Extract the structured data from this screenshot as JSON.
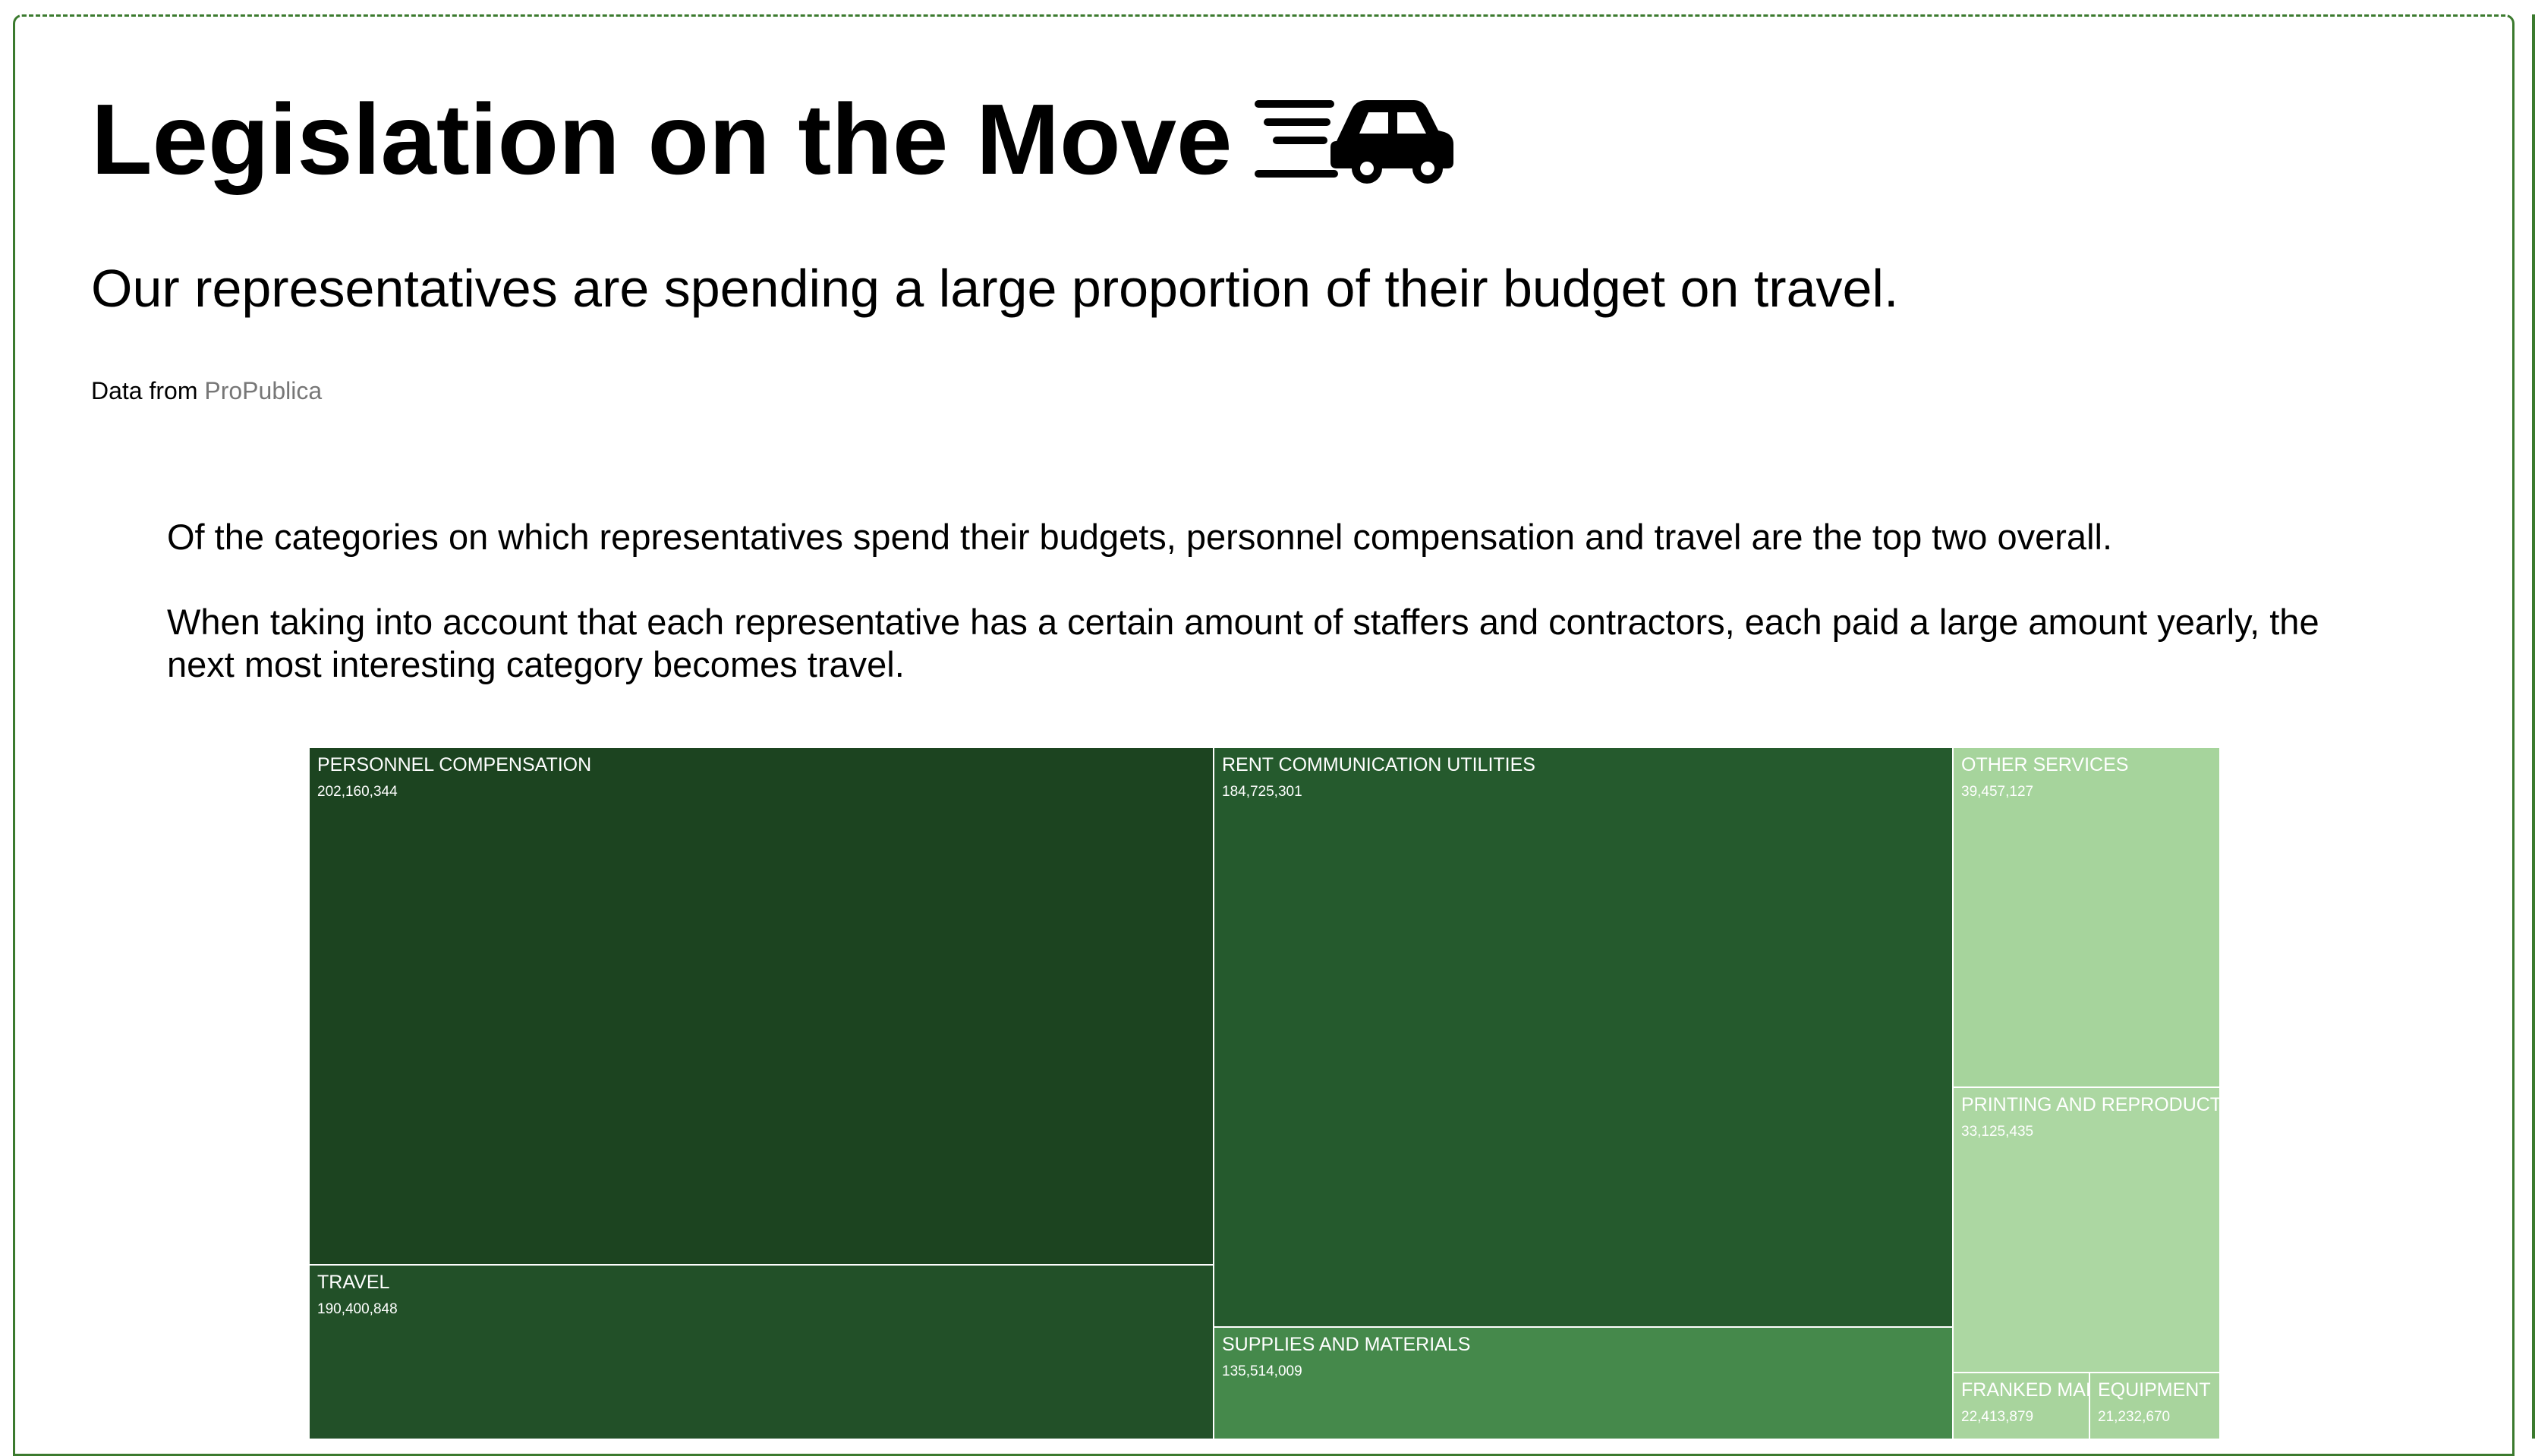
{
  "header": {
    "title": "Legislation on the Move",
    "title_icon": "speeding-car-icon",
    "subtitle": "Our representatives are spending a large proportion of their budget on travel.",
    "source_prefix": "Data from",
    "source_link": "ProPublica"
  },
  "body": {
    "paragraph_1": "Of the categories on which representatives spend their budgets, personnel compensation and travel are the top two overall.",
    "paragraph_2": "When taking into account that each representative has a certain amount of staffers and contractors, each paid a large amount yearly, the next most interesting category becomes travel."
  },
  "colors": {
    "frame": "#3b7a2e",
    "link": "#777777",
    "personnel": "#1c4420",
    "travel": "#225028",
    "rent": "#255a2d",
    "supplies": "#45894b",
    "other_services": "#a6d49c",
    "printing": "#acd7a2",
    "franked": "#a8d49d",
    "equipment": "#a8d49d"
  },
  "chart_data": {
    "type": "treemap",
    "items": [
      {
        "key": "personnel",
        "label": "PERSONNEL COMPENSATION",
        "value": 202160344,
        "value_text": "202,160,344"
      },
      {
        "key": "travel",
        "label": "TRAVEL",
        "value": 190400848,
        "value_text": "190,400,848"
      },
      {
        "key": "rent",
        "label": "RENT COMMUNICATION UTILITIES",
        "value": 184725301,
        "value_text": "184,725,301"
      },
      {
        "key": "supplies",
        "label": "SUPPLIES AND MATERIALS",
        "value": 135514009,
        "value_text": "135,514,009"
      },
      {
        "key": "other_services",
        "label": "OTHER SERVICES",
        "value": 39457127,
        "value_text": "39,457,127"
      },
      {
        "key": "printing",
        "label": "PRINTING AND REPRODUCTION",
        "value": 33125435,
        "value_text": "33,125,435"
      },
      {
        "key": "franked",
        "label": "FRANKED MAIL",
        "value": 22413879,
        "value_text": "22,413,879"
      },
      {
        "key": "equipment",
        "label": "EQUIPMENT",
        "value": 21232670,
        "value_text": "21,232,670"
      }
    ]
  }
}
